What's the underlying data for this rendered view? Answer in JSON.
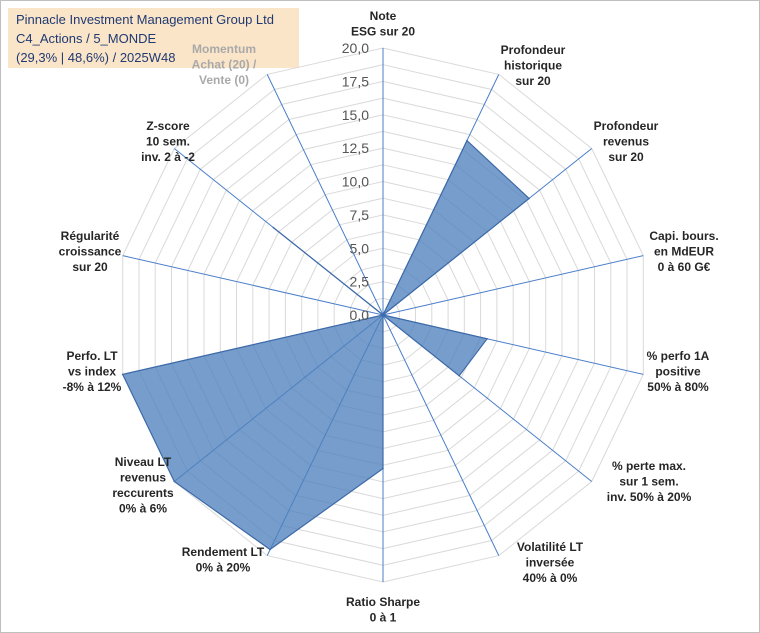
{
  "header": {
    "company": "Pinnacle Investment Management Group Ltd",
    "category": "C4_Actions / 5_MONDE",
    "stats": "(29,3% | 48,6%) / 2025W48"
  },
  "chart_data": {
    "type": "radar",
    "axes": [
      [
        "Note",
        "ESG sur 20"
      ],
      [
        "Profondeur",
        "historique",
        "sur 20"
      ],
      [
        "Profondeur",
        "revenus",
        "sur 20"
      ],
      [
        "Capi. bours.",
        "en MdEUR",
        "0 à 60 G€"
      ],
      [
        "% perfo 1A",
        "positive",
        "50% à 80%"
      ],
      [
        "% perte max.",
        "sur 1 sem.",
        "inv. 50% à 20%"
      ],
      [
        "Volatilité LT",
        "inversée",
        "40% à 0%"
      ],
      [
        "Ratio Sharpe",
        "0 à 1"
      ],
      [
        "Rendement LT",
        "0% à 20%"
      ],
      [
        "Niveau LT",
        "revenus",
        "reccurents",
        "0% à 6%"
      ],
      [
        "Perfo. LT",
        "vs index",
        "-8% à 12%"
      ],
      [
        "Régularité",
        "croissance",
        "sur 20"
      ],
      [
        "Z-score",
        "10 sem.",
        "inv. 2 à -2"
      ],
      [
        "Momentum",
        "Achat (20) /",
        "Vente (0)"
      ]
    ],
    "faded_axes": [
      13
    ],
    "values": [
      0,
      14.5,
      14.0,
      0,
      8.0,
      7.3,
      0,
      11.5,
      19.5,
      20.0,
      20.0,
      0,
      10.5,
      0
    ],
    "ticks": [
      "0,0",
      "2,5",
      "5,0",
      "7,5",
      "10,0",
      "12,5",
      "15,0",
      "17,5",
      "20,0"
    ],
    "rmin": 0,
    "rmax": 20,
    "grid": true,
    "colors": {
      "fill": "#4f81bd",
      "stroke": "#3d6aa8",
      "grid": "#d9d9d9",
      "spoke": "#4a7ec9"
    }
  }
}
